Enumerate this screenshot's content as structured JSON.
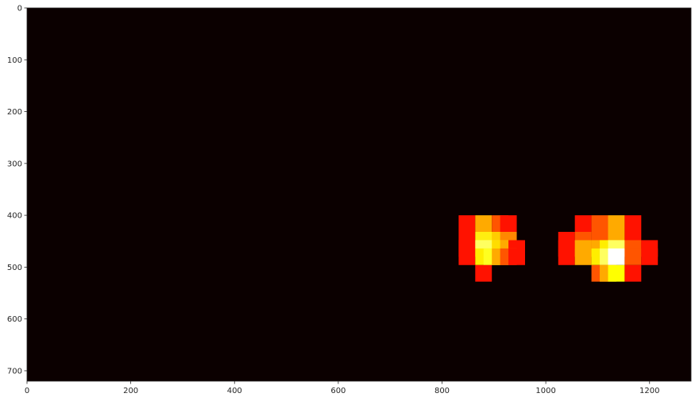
{
  "chart_data": {
    "type": "heatmap",
    "title": "",
    "xlabel": "",
    "ylabel": "",
    "xlim": [
      0,
      1280
    ],
    "ylim": [
      720,
      0
    ],
    "background_color": "#0b0000",
    "colormap": "hot",
    "xticks": [
      "0",
      "200",
      "400",
      "600",
      "800",
      "1000",
      "1200"
    ],
    "yticks": [
      "0",
      "100",
      "200",
      "300",
      "400",
      "500",
      "600",
      "700"
    ],
    "cell_size": [
      32,
      32
    ],
    "cells": [
      {
        "x": 832,
        "y": 400,
        "color": "#ff1200"
      },
      {
        "x": 864,
        "y": 400,
        "color": "#ffaa00"
      },
      {
        "x": 896,
        "y": 400,
        "color": "#ff5500"
      },
      {
        "x": 912,
        "y": 400,
        "color": "#ff1200"
      },
      {
        "x": 832,
        "y": 432,
        "color": "#ff1200"
      },
      {
        "x": 864,
        "y": 432,
        "color": "#ffee10"
      },
      {
        "x": 880,
        "y": 432,
        "color": "#ffee10"
      },
      {
        "x": 896,
        "y": 432,
        "color": "#ffcc00"
      },
      {
        "x": 912,
        "y": 432,
        "color": "#ff8800"
      },
      {
        "x": 832,
        "y": 448,
        "color": "#ff1200"
      },
      {
        "x": 864,
        "y": 448,
        "color": "#ffff60"
      },
      {
        "x": 880,
        "y": 448,
        "color": "#ffff60"
      },
      {
        "x": 896,
        "y": 448,
        "color": "#ffdd00"
      },
      {
        "x": 912,
        "y": 448,
        "color": "#ffaa00"
      },
      {
        "x": 928,
        "y": 448,
        "color": "#ff1200"
      },
      {
        "x": 832,
        "y": 464,
        "color": "#ff1200"
      },
      {
        "x": 864,
        "y": 464,
        "color": "#ffee00"
      },
      {
        "x": 880,
        "y": 464,
        "color": "#ffff20"
      },
      {
        "x": 896,
        "y": 464,
        "color": "#ffaa00"
      },
      {
        "x": 912,
        "y": 464,
        "color": "#ff5500"
      },
      {
        "x": 928,
        "y": 464,
        "color": "#ff1200"
      },
      {
        "x": 864,
        "y": 496,
        "color": "#ff1200"
      },
      {
        "x": 1056,
        "y": 400,
        "color": "#ff1200"
      },
      {
        "x": 1088,
        "y": 400,
        "color": "#ff5500"
      },
      {
        "x": 1120,
        "y": 400,
        "color": "#ffaa00"
      },
      {
        "x": 1152,
        "y": 400,
        "color": "#ff1200"
      },
      {
        "x": 1024,
        "y": 432,
        "color": "#ff1200"
      },
      {
        "x": 1056,
        "y": 432,
        "color": "#ff5500"
      },
      {
        "x": 1088,
        "y": 432,
        "color": "#ff5500"
      },
      {
        "x": 1120,
        "y": 432,
        "color": "#ffaa00"
      },
      {
        "x": 1152,
        "y": 432,
        "color": "#ff1200"
      },
      {
        "x": 1024,
        "y": 448,
        "color": "#ff1200"
      },
      {
        "x": 1056,
        "y": 448,
        "color": "#ffaa00"
      },
      {
        "x": 1088,
        "y": 448,
        "color": "#ffaa00"
      },
      {
        "x": 1104,
        "y": 448,
        "color": "#ffee00"
      },
      {
        "x": 1120,
        "y": 448,
        "color": "#ffff60"
      },
      {
        "x": 1152,
        "y": 448,
        "color": "#ff5500"
      },
      {
        "x": 1184,
        "y": 448,
        "color": "#ff1200"
      },
      {
        "x": 1024,
        "y": 464,
        "color": "#ff1200"
      },
      {
        "x": 1056,
        "y": 464,
        "color": "#ffaa00"
      },
      {
        "x": 1088,
        "y": 464,
        "color": "#ffee00"
      },
      {
        "x": 1104,
        "y": 464,
        "color": "#ffff60"
      },
      {
        "x": 1120,
        "y": 464,
        "color": "#ffffff"
      },
      {
        "x": 1152,
        "y": 464,
        "color": "#ff5500"
      },
      {
        "x": 1184,
        "y": 464,
        "color": "#ff1200"
      },
      {
        "x": 1088,
        "y": 496,
        "color": "#ff5500"
      },
      {
        "x": 1104,
        "y": 496,
        "color": "#ffaa00"
      },
      {
        "x": 1120,
        "y": 496,
        "color": "#ffff00"
      },
      {
        "x": 1152,
        "y": 496,
        "color": "#ff1200"
      }
    ]
  }
}
